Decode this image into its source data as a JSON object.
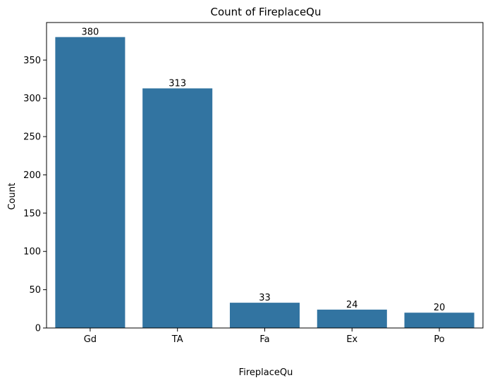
{
  "chart_data": {
    "type": "bar",
    "title": "Count of FireplaceQu",
    "xlabel": "FireplaceQu",
    "ylabel": "Count",
    "categories": [
      "Gd",
      "TA",
      "Fa",
      "Ex",
      "Po"
    ],
    "values": [
      380,
      313,
      33,
      24,
      20
    ],
    "data_labels": [
      "380",
      "313",
      "33",
      "24",
      "20"
    ],
    "yticks": [
      0,
      50,
      100,
      150,
      200,
      250,
      300,
      350
    ],
    "ylim": [
      0,
      399
    ],
    "grid": false,
    "legend": "none",
    "bar_color": "#3274a1"
  }
}
